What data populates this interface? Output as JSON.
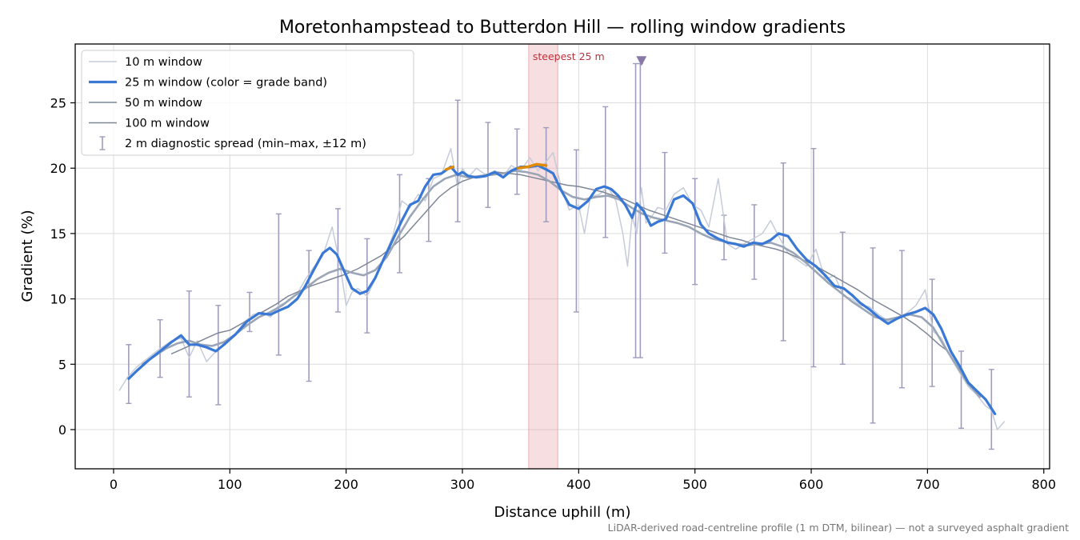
{
  "chart_data": {
    "type": "line",
    "title": "Moretonhampstead to Butterdon Hill — rolling window gradients",
    "xlabel": "Distance uphill (m)",
    "ylabel": "Gradient (%)",
    "xlim": [
      -33,
      805
    ],
    "ylim": [
      -3,
      29.5
    ],
    "xticks": [
      0,
      100,
      200,
      300,
      400,
      500,
      600,
      700,
      800
    ],
    "yticks": [
      0,
      5,
      10,
      15,
      20,
      25
    ],
    "grid": true,
    "legend_position": "top-left",
    "colors": {
      "w10": "#c5ccd8",
      "w25": "#3a78d6",
      "w25_steep": "#e08a00",
      "w50": "#9aa5b5",
      "w100": "#7f8796",
      "errorbar": "#9f9dbd",
      "highlight": "#e8a0a8",
      "marker": "#8878a8"
    },
    "series": [
      {
        "name": "10 m window",
        "x": [
          5,
          12,
          20,
          30,
          40,
          50,
          58,
          65,
          72,
          80,
          88,
          95,
          105,
          112,
          120,
          128,
          135,
          142,
          150,
          158,
          165,
          172,
          180,
          188,
          195,
          200,
          205,
          210,
          218,
          225,
          232,
          240,
          248,
          255,
          262,
          268,
          275,
          282,
          290,
          296,
          300,
          305,
          312,
          320,
          328,
          335,
          342,
          350,
          358,
          365,
          372,
          378,
          385,
          392,
          400,
          405,
          410,
          418,
          425,
          432,
          438,
          442,
          446,
          450,
          454,
          458,
          462,
          468,
          475,
          482,
          490,
          498,
          505,
          512,
          520,
          528,
          535,
          542,
          550,
          558,
          565,
          572,
          580,
          588,
          596,
          604,
          612,
          620,
          628,
          635,
          642,
          650,
          658,
          666,
          674,
          682,
          690,
          698,
          705,
          712,
          720,
          728,
          735,
          742,
          750,
          755,
          760,
          766
        ],
        "values": [
          3.0,
          4.0,
          4.8,
          5.5,
          6.2,
          6.8,
          7.0,
          5.5,
          6.8,
          5.2,
          6.0,
          6.5,
          7.2,
          8.2,
          8.8,
          9.0,
          8.6,
          9.5,
          9.8,
          10.4,
          11.5,
          12.4,
          13.3,
          15.5,
          12.5,
          9.5,
          10.5,
          10.8,
          10.2,
          11.5,
          13.0,
          14.8,
          17.5,
          17.0,
          18.0,
          17.5,
          19.2,
          19.5,
          21.5,
          18.5,
          20.0,
          19.3,
          20.0,
          19.5,
          19.8,
          19.3,
          20.2,
          19.8,
          20.8,
          19.8,
          20.5,
          21.2,
          18.5,
          16.8,
          17.2,
          15.0,
          17.8,
          18.0,
          18.6,
          17.5,
          15.0,
          12.5,
          16.3,
          15.0,
          18.5,
          15.8,
          16.2,
          17.0,
          16.8,
          18.0,
          18.5,
          17.2,
          16.8,
          15.5,
          19.2,
          14.2,
          13.8,
          14.2,
          14.6,
          15.0,
          16.0,
          14.8,
          13.5,
          13.0,
          12.5,
          13.8,
          11.5,
          11.8,
          10.2,
          10.0,
          9.5,
          9.4,
          8.8,
          8.3,
          8.6,
          8.9,
          9.5,
          10.7,
          7.5,
          7.0,
          5.5,
          4.3,
          3.3,
          2.7,
          1.8,
          1.5,
          0.0,
          0.6
        ]
      },
      {
        "name": "25 m window (color = grade band)",
        "x": [
          13,
          20,
          30,
          40,
          50,
          58,
          65,
          72,
          80,
          88,
          95,
          105,
          115,
          125,
          135,
          142,
          150,
          158,
          165,
          172,
          180,
          186,
          192,
          198,
          205,
          212,
          218,
          225,
          232,
          240,
          248,
          255,
          262,
          268,
          275,
          282,
          290,
          296,
          300,
          305,
          312,
          320,
          328,
          335,
          342,
          350,
          358,
          365,
          372,
          378,
          385,
          392,
          400,
          408,
          415,
          422,
          428,
          434,
          440,
          446,
          450,
          456,
          462,
          468,
          475,
          482,
          490,
          498,
          505,
          512,
          520,
          528,
          535,
          542,
          550,
          558,
          565,
          572,
          580,
          588,
          596,
          604,
          612,
          620,
          628,
          635,
          642,
          650,
          658,
          666,
          674,
          682,
          690,
          698,
          705,
          712,
          720,
          728,
          735,
          742,
          750,
          758
        ],
        "values": [
          3.9,
          4.5,
          5.3,
          6.0,
          6.7,
          7.2,
          6.5,
          6.5,
          6.3,
          6.0,
          6.5,
          7.3,
          8.3,
          8.9,
          8.8,
          9.1,
          9.4,
          10.0,
          11.0,
          12.2,
          13.5,
          13.9,
          13.4,
          12.2,
          10.8,
          10.4,
          10.6,
          11.6,
          13.0,
          14.5,
          16.0,
          17.2,
          17.5,
          18.6,
          19.5,
          19.6,
          20.1,
          19.5,
          19.7,
          19.4,
          19.3,
          19.4,
          19.7,
          19.3,
          19.8,
          20.1,
          20.1,
          20.2,
          19.9,
          19.6,
          18.3,
          17.2,
          16.9,
          17.5,
          18.4,
          18.6,
          18.4,
          17.9,
          17.2,
          16.2,
          17.3,
          16.7,
          15.6,
          15.9,
          16.1,
          17.6,
          17.9,
          17.3,
          15.7,
          15.0,
          14.6,
          14.3,
          14.2,
          14.0,
          14.3,
          14.2,
          14.5,
          15.0,
          14.8,
          13.8,
          13.0,
          12.5,
          11.8,
          11.0,
          10.8,
          10.3,
          9.7,
          9.2,
          8.6,
          8.1,
          8.5,
          8.8,
          9.0,
          9.3,
          8.8,
          7.7,
          6.0,
          4.8,
          3.6,
          3.0,
          2.3,
          1.2
        ],
        "steep_segments": [
          {
            "x": [
              286,
              292
            ],
            "values": [
              19.9,
              20.1
            ]
          },
          {
            "x": [
              348,
              356,
              364,
              372
            ],
            "values": [
              20.0,
              20.1,
              20.3,
              20.2
            ]
          }
        ]
      },
      {
        "name": "50 m window",
        "x": [
          25,
          35,
          45,
          55,
          65,
          75,
          85,
          95,
          105,
          115,
          125,
          135,
          145,
          155,
          165,
          175,
          185,
          195,
          205,
          215,
          225,
          235,
          245,
          255,
          265,
          275,
          285,
          295,
          305,
          315,
          325,
          335,
          345,
          355,
          365,
          375,
          385,
          395,
          405,
          415,
          425,
          435,
          445,
          455,
          465,
          475,
          485,
          495,
          505,
          515,
          525,
          535,
          545,
          555,
          565,
          575,
          585,
          595,
          605,
          615,
          625,
          635,
          645,
          655,
          665,
          675,
          685,
          695,
          705,
          715,
          725,
          735,
          745
        ],
        "values": [
          5.0,
          5.6,
          6.2,
          6.6,
          6.8,
          6.5,
          6.4,
          6.7,
          7.3,
          8.0,
          8.6,
          9.0,
          9.5,
          10.2,
          10.8,
          11.5,
          12.0,
          12.3,
          12.0,
          11.8,
          12.2,
          13.2,
          14.8,
          16.3,
          17.5,
          18.6,
          19.2,
          19.5,
          19.3,
          19.4,
          19.5,
          19.6,
          19.8,
          19.7,
          19.5,
          19.0,
          18.3,
          17.8,
          17.6,
          17.8,
          17.9,
          17.6,
          17.0,
          16.5,
          16.2,
          16.0,
          15.8,
          15.5,
          15.0,
          14.6,
          14.4,
          14.2,
          14.1,
          14.2,
          14.3,
          14.0,
          13.5,
          12.8,
          12.0,
          11.2,
          10.5,
          9.8,
          9.2,
          8.6,
          8.4,
          8.6,
          8.8,
          8.6,
          7.8,
          6.3,
          4.9,
          3.5,
          2.5
        ]
      },
      {
        "name": "100 m window",
        "x": [
          50,
          60,
          70,
          80,
          90,
          100,
          110,
          120,
          130,
          140,
          150,
          160,
          170,
          180,
          190,
          200,
          210,
          220,
          230,
          240,
          250,
          260,
          270,
          280,
          290,
          300,
          310,
          320,
          330,
          340,
          350,
          360,
          370,
          380,
          390,
          400,
          410,
          420,
          430,
          440,
          450,
          460,
          470,
          480,
          490,
          500,
          510,
          520,
          530,
          540,
          550,
          560,
          570,
          580,
          590,
          600,
          610,
          620,
          630,
          640,
          650,
          660,
          670,
          680,
          690,
          700,
          710,
          716
        ],
        "values": [
          5.8,
          6.2,
          6.6,
          7.0,
          7.4,
          7.6,
          8.1,
          8.6,
          9.1,
          9.6,
          10.2,
          10.6,
          11.0,
          11.3,
          11.6,
          11.9,
          12.3,
          12.8,
          13.3,
          14.0,
          14.8,
          15.8,
          16.8,
          17.8,
          18.5,
          19.0,
          19.3,
          19.5,
          19.7,
          19.6,
          19.5,
          19.3,
          19.1,
          18.9,
          18.7,
          18.6,
          18.4,
          18.2,
          17.9,
          17.6,
          17.2,
          16.8,
          16.5,
          16.2,
          15.9,
          15.6,
          15.3,
          15.0,
          14.7,
          14.5,
          14.2,
          14.0,
          13.8,
          13.5,
          13.1,
          12.7,
          12.2,
          11.7,
          11.2,
          10.7,
          10.1,
          9.6,
          9.1,
          8.6,
          8.0,
          7.3,
          6.5,
          6.1
        ]
      }
    ],
    "errorbars": {
      "name": "2 m diagnostic spread (min–max, ±12 m)",
      "x": [
        13,
        40,
        65,
        90,
        117,
        142,
        168,
        193,
        218,
        246,
        271,
        296,
        322,
        347,
        372,
        398,
        423,
        449,
        453,
        474,
        500,
        525,
        551,
        576,
        602,
        627,
        653,
        678,
        704,
        729,
        755
      ],
      "low": [
        2.0,
        4.0,
        2.5,
        1.9,
        7.5,
        5.7,
        3.7,
        9.0,
        7.4,
        12.0,
        14.4,
        15.9,
        17.0,
        18.0,
        15.9,
        9.0,
        14.7,
        5.5,
        5.5,
        13.5,
        11.1,
        13.0,
        11.5,
        6.8,
        4.8,
        5.0,
        0.5,
        3.2,
        3.3,
        0.1,
        -1.5
      ],
      "high": [
        6.5,
        8.4,
        10.6,
        9.5,
        10.5,
        16.5,
        13.7,
        16.9,
        14.6,
        19.5,
        19.2,
        25.2,
        23.5,
        23.0,
        23.1,
        21.4,
        24.7,
        28.0,
        28.0,
        21.2,
        19.2,
        16.4,
        17.2,
        20.4,
        21.5,
        15.1,
        13.9,
        13.7,
        11.5,
        6.0,
        4.6
      ]
    },
    "highlight": {
      "x0": 357,
      "x1": 382,
      "label": "steepest 25 m"
    },
    "marker": {
      "x": 454,
      "y": 28.2
    },
    "footnote": "LiDAR-derived road-centreline profile (1 m DTM, bilinear) — not a surveyed asphalt gradient"
  }
}
